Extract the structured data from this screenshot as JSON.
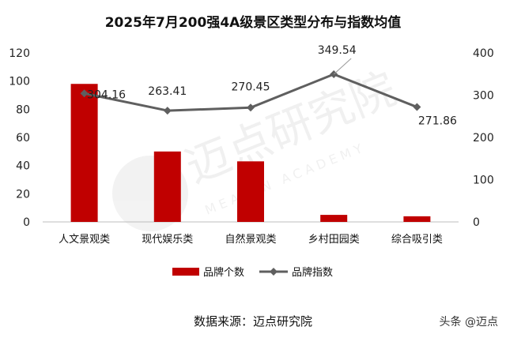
{
  "chart_data": {
    "type": "bar",
    "title": "2025年7月200强4A级景区类型分布与指数均值",
    "categories": [
      "人文景观类",
      "现代娱乐类",
      "自然景观类",
      "乡村田园类",
      "综合吸引类"
    ],
    "series": [
      {
        "name": "品牌个数",
        "type": "bar",
        "axis": "left",
        "values": [
          98,
          50,
          43,
          5,
          4
        ],
        "color": "#c00000"
      },
      {
        "name": "品牌指数",
        "type": "line",
        "axis": "right",
        "values": [
          304.16,
          263.41,
          270.45,
          349.54,
          271.86
        ],
        "color": "#5f5f5f"
      }
    ],
    "data_labels": [
      "304.16",
      "263.41",
      "270.45",
      "349.54",
      "271.86"
    ],
    "y_left": {
      "min": 0,
      "max": 120,
      "ticks": [
        "0",
        "20",
        "40",
        "60",
        "80",
        "100",
        "120"
      ]
    },
    "y_right": {
      "min": 0,
      "max": 400,
      "ticks": [
        "0",
        "100",
        "200",
        "300",
        "400"
      ]
    },
    "legend_position": "bottom",
    "grid": false
  },
  "footer": {
    "source": "数据来源：迈点研究院",
    "brand": "头条 @迈点"
  },
  "watermark": {
    "text": "迈点研究院",
    "subtext": "MEADIN ACADEMY"
  }
}
